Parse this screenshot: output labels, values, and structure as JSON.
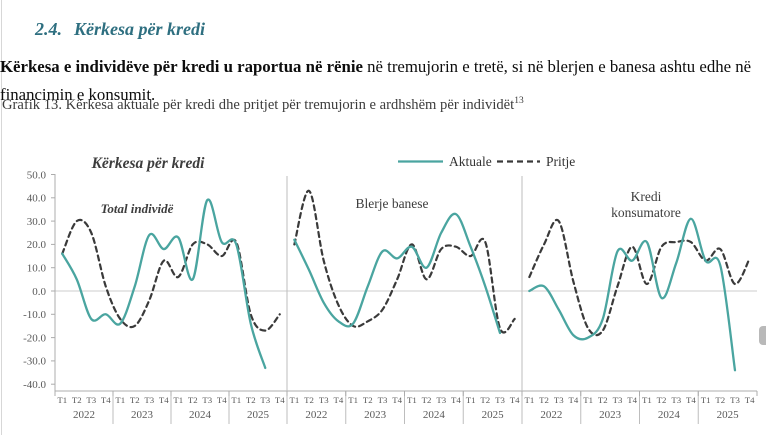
{
  "page": {
    "heading_number": "2.4.",
    "heading_text": "Kërkesa për kredi",
    "paragraph_bold": "Kërkesa e individëve për kredi u raportua në rënie",
    "paragraph_rest": " në tremujorin e tretë, si në blerjen e banesa ashtu edhe në financimin e konsumit.",
    "figure_caption": "Grafik 13. Kërkesa aktuale për kredi dhe pritjet për tremujorin e ardhshëm për individët",
    "figure_footnote_ref": "13"
  },
  "colors": {
    "aktuale": "#4aa5a0",
    "pritje": "#3a3a3a",
    "axis_line": "#acacac",
    "grid_line": "#cdcdcd",
    "separator": "#bdbdbd",
    "axis_text": "#595959",
    "chart_text": "#3d3d3d"
  },
  "chart_data": {
    "type": "line",
    "title": "Kërkesa për kredi",
    "legend_position": "top",
    "grid": {
      "zero_line": true
    },
    "x_categories": [
      "T1 2022",
      "T2 2022",
      "T3 2022",
      "T4 2022",
      "T1 2023",
      "T2 2023",
      "T3 2023",
      "T4 2023",
      "T1 2024",
      "T2 2024",
      "T3 2024",
      "T4 2024",
      "T1 2025",
      "T2 2025",
      "T3 2025",
      "T4 2025"
    ],
    "x_axis": {
      "quarters": [
        "T1",
        "T2",
        "T3",
        "T4"
      ],
      "years": [
        "2022",
        "2023",
        "2024",
        "2025"
      ]
    },
    "y_axis": {
      "min": -40,
      "max": 50,
      "step": 10,
      "labels": [
        "50.0",
        "40.0",
        "30.0",
        "20.0",
        "10.0",
        "0.0",
        "-10.0",
        "-20.0",
        "-30.0",
        "-40.0"
      ]
    },
    "legend": [
      {
        "label": "Aktuale",
        "line": "solid",
        "color": "#4aa5a0"
      },
      {
        "label": "Pritje",
        "line": "dashed",
        "color": "#3a3a3a"
      }
    ],
    "panels": [
      {
        "label_lines": [
          "Total individë"
        ],
        "emphasis": true,
        "series": [
          {
            "name": "Aktuale",
            "values": [
              16,
              5,
              -12,
              -10,
              -14,
              2,
              24,
              18,
              23,
              5,
              39,
              21,
              20,
              -14,
              -33
            ]
          },
          {
            "name": "Pritje",
            "values": [
              16,
              30,
              25,
              2,
              -12,
              -15,
              -4,
              13,
              6,
              20,
              20,
              15,
              21,
              -10,
              -17,
              -10
            ]
          }
        ]
      },
      {
        "label_lines": [
          "Blerje banese"
        ],
        "emphasis": false,
        "series": [
          {
            "name": "Aktuale",
            "values": [
              22,
              9,
              -5,
              -13,
              -14,
              2,
              17,
              14,
              19,
              10,
              25,
              33,
              19,
              2,
              -18
            ]
          },
          {
            "name": "Pritje",
            "values": [
              20,
              43,
              13,
              -6,
              -15,
              -13,
              -8,
              5,
              20,
              5,
              18,
              19,
              15,
              21,
              -16,
              -12
            ]
          }
        ]
      },
      {
        "label_lines": [
          "Kredi",
          "konsumatore"
        ],
        "emphasis": false,
        "series": [
          {
            "name": "Aktuale",
            "values": [
              0,
              2,
              -8,
              -19,
              -20,
              -12,
              17,
              13,
              21,
              -3,
              12,
              31,
              13,
              11,
              -34
            ]
          },
          {
            "name": "Pritje",
            "values": [
              6,
              20,
              30,
              4,
              -16,
              -17,
              2,
              19,
              3,
              19,
              21,
              21,
              13,
              18,
              3,
              14
            ]
          }
        ]
      }
    ]
  }
}
